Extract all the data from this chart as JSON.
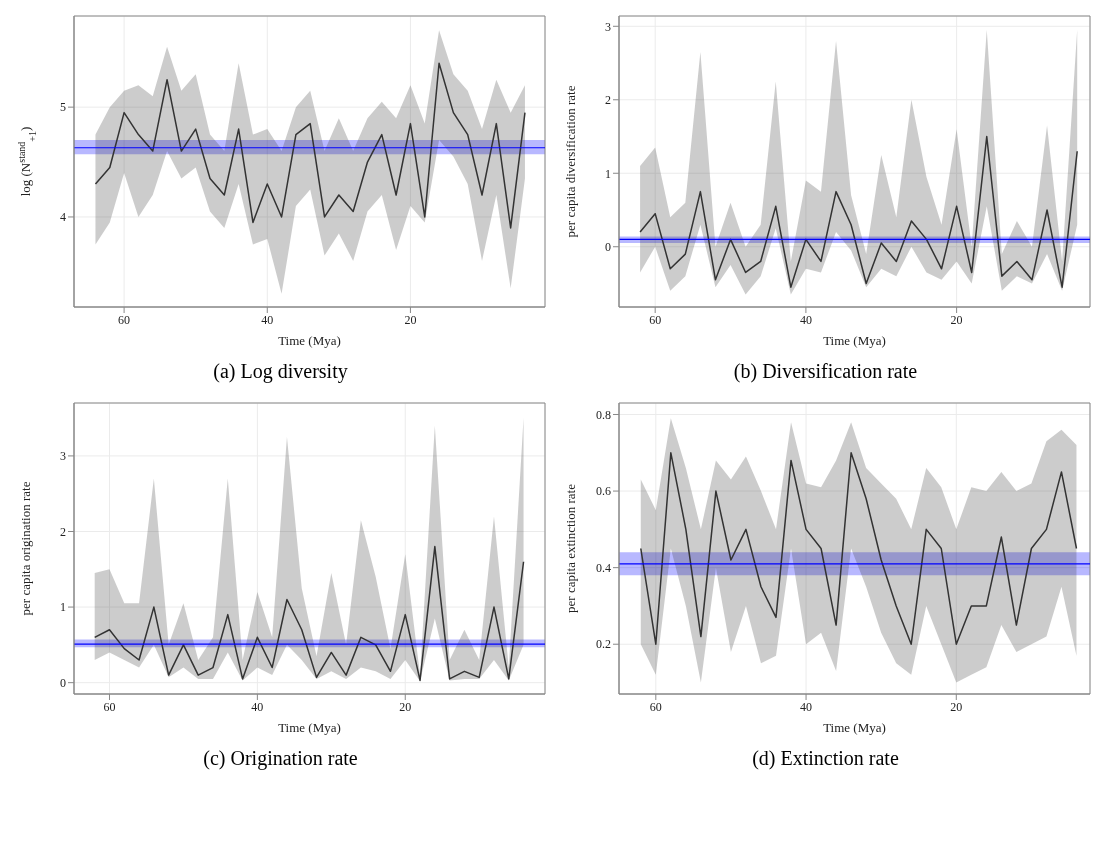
{
  "chart_data": [
    {
      "type": "line",
      "title": "(a) Log diversity",
      "xlabel": "Time (Mya)",
      "ylabel": "log (N$^{stand}$$_{+1}$)",
      "grid": true,
      "xlim": [
        67,
        1.2
      ],
      "xticks": [
        60,
        40,
        20
      ],
      "ylim": [
        3.18,
        5.83
      ],
      "yticks": [
        4,
        5
      ],
      "x": [
        64,
        62,
        60,
        58,
        56,
        54,
        52,
        50,
        48,
        46,
        44,
        42,
        40,
        38,
        36,
        34,
        32,
        30,
        28,
        26,
        24,
        22,
        20,
        18,
        16,
        14,
        12,
        10,
        8,
        6,
        4
      ],
      "series": [
        {
          "color": "#333333",
          "values": [
            4.3,
            4.45,
            4.95,
            4.75,
            4.6,
            5.25,
            4.6,
            4.8,
            4.35,
            4.2,
            4.8,
            3.95,
            4.3,
            4.0,
            4.75,
            4.85,
            4.0,
            4.2,
            4.05,
            4.5,
            4.75,
            4.2,
            4.85,
            4.0,
            5.4,
            4.95,
            4.75,
            4.2,
            4.85,
            3.9,
            4.95
          ],
          "lower": [
            3.75,
            3.95,
            4.4,
            4.0,
            4.2,
            4.6,
            4.35,
            4.45,
            4.05,
            3.9,
            4.3,
            3.75,
            3.8,
            3.3,
            4.1,
            4.25,
            3.65,
            3.85,
            3.6,
            4.05,
            4.2,
            3.7,
            4.1,
            3.95,
            4.7,
            4.55,
            4.3,
            3.6,
            4.2,
            3.35,
            4.35
          ],
          "upper": [
            4.75,
            5.0,
            5.15,
            5.2,
            5.1,
            5.55,
            5.15,
            5.3,
            4.75,
            4.6,
            5.4,
            4.75,
            4.8,
            4.6,
            5.0,
            5.15,
            4.6,
            4.9,
            4.6,
            4.9,
            5.05,
            4.9,
            5.2,
            4.85,
            5.7,
            5.3,
            5.15,
            4.8,
            5.25,
            4.95,
            5.2
          ]
        }
      ],
      "bands": [
        {
          "axis": "y",
          "from": 4.57,
          "to": 4.7,
          "color": "#0000ff"
        }
      ],
      "ref_lines": [
        {
          "axis": "y",
          "value": 4.63,
          "color": "#0000ff"
        }
      ]
    },
    {
      "type": "line",
      "title": "(b) Diversification rate",
      "xlabel": "Time (Mya)",
      "ylabel": "per capita diversification rate",
      "grid": true,
      "xlim": [
        64.8,
        2.3
      ],
      "xticks": [
        60,
        40,
        20
      ],
      "ylim": [
        -0.82,
        3.14
      ],
      "yticks": [
        0,
        1,
        2,
        3
      ],
      "x": [
        62,
        60,
        58,
        56,
        54,
        52,
        50,
        48,
        46,
        44,
        42,
        40,
        38,
        36,
        34,
        32,
        30,
        28,
        26,
        24,
        22,
        20,
        18,
        16,
        14,
        12,
        10,
        8,
        6,
        4
      ],
      "series": [
        {
          "color": "#333333",
          "values": [
            0.2,
            0.45,
            -0.3,
            -0.1,
            0.75,
            -0.45,
            0.1,
            -0.35,
            -0.2,
            0.55,
            -0.55,
            0.1,
            -0.2,
            0.75,
            0.3,
            -0.5,
            0.05,
            -0.2,
            0.35,
            0.1,
            -0.3,
            0.55,
            -0.35,
            1.5,
            -0.4,
            -0.2,
            -0.45,
            0.5,
            -0.55,
            1.3
          ],
          "lower": [
            -0.35,
            0.0,
            -0.6,
            -0.4,
            0.3,
            -0.55,
            -0.25,
            -0.65,
            -0.4,
            0.25,
            -0.65,
            -0.3,
            -0.35,
            0.2,
            -0.05,
            -0.55,
            -0.3,
            -0.4,
            0.0,
            -0.35,
            -0.45,
            -0.2,
            -0.5,
            0.55,
            -0.6,
            -0.4,
            -0.5,
            -0.1,
            -0.6,
            0.3
          ],
          "upper": [
            1.1,
            1.35,
            0.4,
            0.6,
            2.65,
            0.0,
            0.6,
            0.0,
            0.3,
            2.25,
            -0.2,
            0.9,
            0.75,
            2.8,
            0.7,
            -0.1,
            1.25,
            0.4,
            2.0,
            0.95,
            0.3,
            1.6,
            0.0,
            2.95,
            -0.1,
            0.35,
            0.0,
            1.65,
            -0.2,
            2.95
          ]
        }
      ],
      "bands": [
        {
          "axis": "y",
          "from": 0.05,
          "to": 0.14,
          "color": "#0000ff"
        }
      ],
      "ref_lines": [
        {
          "axis": "y",
          "value": 0.1,
          "color": "#0000ff"
        }
      ]
    },
    {
      "type": "line",
      "title": "(c) Origination rate",
      "xlabel": "Time (Mya)",
      "ylabel": "per capita origination rate",
      "grid": true,
      "xlim": [
        64.8,
        1.1
      ],
      "xticks": [
        60,
        40,
        20
      ],
      "ylim": [
        -0.15,
        3.7
      ],
      "yticks": [
        0,
        1,
        2,
        3
      ],
      "x": [
        62,
        60,
        58,
        56,
        54,
        52,
        50,
        48,
        46,
        44,
        42,
        40,
        38,
        36,
        34,
        32,
        30,
        28,
        26,
        24,
        22,
        20,
        18,
        16,
        14,
        12,
        10,
        8,
        6,
        4
      ],
      "series": [
        {
          "color": "#333333",
          "values": [
            0.6,
            0.7,
            0.45,
            0.3,
            1.0,
            0.1,
            0.5,
            0.1,
            0.2,
            0.9,
            0.05,
            0.6,
            0.2,
            1.1,
            0.7,
            0.07,
            0.4,
            0.1,
            0.6,
            0.5,
            0.15,
            0.9,
            0.03,
            1.8,
            0.05,
            0.15,
            0.07,
            1.0,
            0.05,
            1.6
          ],
          "lower": [
            0.3,
            0.4,
            0.3,
            0.2,
            0.5,
            0.07,
            0.2,
            0.05,
            0.05,
            0.4,
            0.03,
            0.2,
            0.1,
            0.5,
            0.3,
            0.05,
            0.15,
            0.05,
            0.2,
            0.15,
            0.05,
            0.3,
            0.02,
            0.85,
            0.03,
            0.05,
            0.05,
            0.3,
            0.03,
            0.5
          ],
          "upper": [
            1.45,
            1.5,
            1.05,
            1.05,
            2.7,
            0.5,
            1.05,
            0.3,
            0.6,
            2.7,
            0.3,
            1.2,
            0.6,
            3.25,
            1.25,
            0.35,
            1.45,
            0.5,
            2.15,
            1.4,
            0.45,
            1.7,
            0.1,
            3.4,
            0.3,
            0.7,
            0.3,
            2.2,
            0.2,
            3.5
          ]
        }
      ],
      "bands": [
        {
          "axis": "y",
          "from": 0.47,
          "to": 0.57,
          "color": "#0000ff"
        }
      ],
      "ref_lines": [
        {
          "axis": "y",
          "value": 0.51,
          "color": "#0000ff"
        }
      ]
    },
    {
      "type": "line",
      "title": "(d) Extinction rate",
      "xlabel": "Time (Mya)",
      "ylabel": "per capita extinction rate",
      "grid": true,
      "xlim": [
        64.9,
        2.2
      ],
      "xticks": [
        60,
        40,
        20
      ],
      "ylim": [
        0.07,
        0.83
      ],
      "yticks": [
        0.2,
        0.4,
        0.6,
        0.8
      ],
      "x": [
        62,
        60,
        58,
        56,
        54,
        52,
        50,
        48,
        46,
        44,
        42,
        40,
        38,
        36,
        34,
        32,
        30,
        28,
        26,
        24,
        22,
        20,
        18,
        16,
        14,
        12,
        10,
        8,
        6,
        4
      ],
      "series": [
        {
          "color": "#333333",
          "values": [
            0.45,
            0.2,
            0.7,
            0.5,
            0.22,
            0.6,
            0.42,
            0.5,
            0.35,
            0.27,
            0.68,
            0.5,
            0.45,
            0.25,
            0.7,
            0.58,
            0.42,
            0.3,
            0.2,
            0.5,
            0.45,
            0.2,
            0.3,
            0.3,
            0.48,
            0.25,
            0.45,
            0.5,
            0.65,
            0.45
          ],
          "lower": [
            0.2,
            0.12,
            0.45,
            0.3,
            0.1,
            0.4,
            0.18,
            0.3,
            0.15,
            0.17,
            0.45,
            0.2,
            0.23,
            0.13,
            0.45,
            0.35,
            0.23,
            0.15,
            0.12,
            0.3,
            0.2,
            0.1,
            0.12,
            0.14,
            0.25,
            0.18,
            0.2,
            0.22,
            0.35,
            0.17
          ],
          "upper": [
            0.63,
            0.55,
            0.79,
            0.66,
            0.5,
            0.68,
            0.63,
            0.69,
            0.6,
            0.5,
            0.78,
            0.62,
            0.61,
            0.68,
            0.78,
            0.66,
            0.62,
            0.58,
            0.5,
            0.66,
            0.61,
            0.5,
            0.61,
            0.6,
            0.65,
            0.6,
            0.62,
            0.73,
            0.76,
            0.72
          ]
        }
      ],
      "bands": [
        {
          "axis": "y",
          "from": 0.38,
          "to": 0.44,
          "color": "#0000ff"
        }
      ],
      "ref_lines": [
        {
          "axis": "y",
          "value": 0.41,
          "color": "#0000ff"
        }
      ]
    }
  ]
}
